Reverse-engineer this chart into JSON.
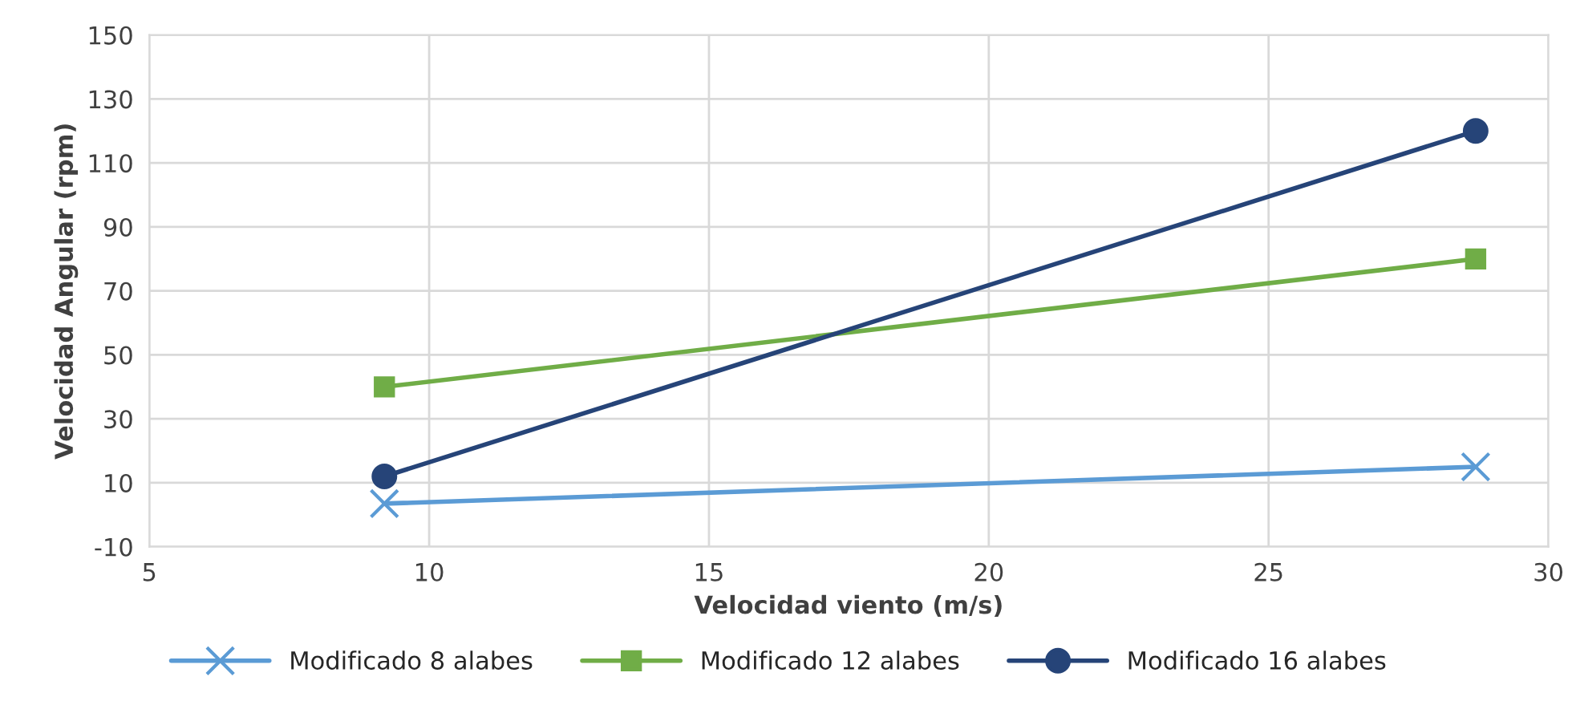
{
  "chart_data": {
    "type": "line",
    "xlabel": "Velocidad viento (m/s)",
    "ylabel": "Velocidad Angular (rpm)",
    "xlim": [
      5,
      30
    ],
    "xticks": [
      5,
      10,
      15,
      20,
      25,
      30
    ],
    "ylim": [
      -10,
      150
    ],
    "yticks": [
      -10,
      10,
      30,
      50,
      70,
      90,
      110,
      130,
      150
    ],
    "grid": true,
    "legend": "bottom",
    "x": [
      9.2,
      28.7
    ],
    "series": [
      {
        "name": "Modificado 8 alabes",
        "color": "#5b9bd5",
        "marker": "cross",
        "values": [
          3.5,
          15
        ]
      },
      {
        "name": "Modificado 12 alabes",
        "color": "#70ad47",
        "marker": "square",
        "values": [
          40,
          80
        ]
      },
      {
        "name": "Modificado 16 alabes",
        "color": "#264478",
        "marker": "circle",
        "values": [
          12,
          120
        ]
      }
    ]
  }
}
